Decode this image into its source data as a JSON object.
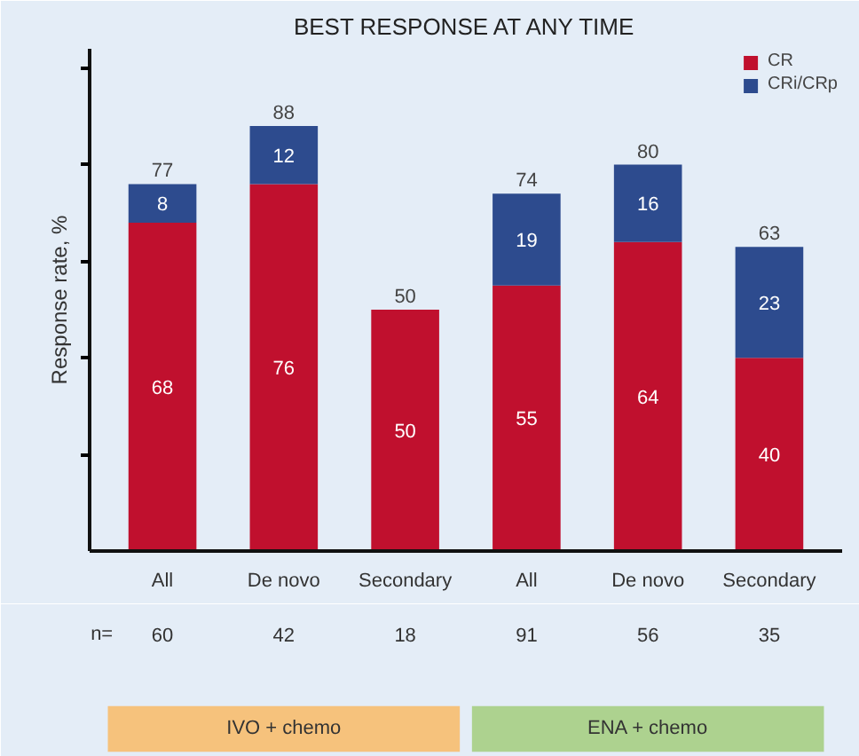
{
  "chart_data": {
    "type": "bar",
    "title": "BEST RESPONSE AT ANY TIME",
    "ylabel": "Response rate, %",
    "categories": [
      "All",
      "De novo",
      "Secondary",
      "All",
      "De novo",
      "Secondary"
    ],
    "stacked": true,
    "series": [
      {
        "name": "CR",
        "color": "#c0102e",
        "values": [
          68,
          76,
          50,
          55,
          64,
          40
        ]
      },
      {
        "name": "CRi/CRp",
        "color": "#2d4b8e",
        "values": [
          8,
          12,
          null,
          19,
          16,
          23
        ]
      }
    ],
    "data_labels": true,
    "totals": [
      "77",
      "88",
      "50",
      "74",
      "80",
      "63"
    ],
    "ylim": [
      0,
      104
    ],
    "yticks": [
      {
        "value": 20,
        "label": null
      },
      {
        "value": 40,
        "label": null
      },
      {
        "value": 60,
        "label": null
      },
      {
        "value": 80,
        "label": null
      },
      {
        "value": 100,
        "label": null
      }
    ],
    "tick_labels": "x",
    "grid": false,
    "legend": "top right",
    "annotations": [
      "n=",
      "60",
      "42",
      "18",
      "91",
      "56",
      "35",
      "IVO + chemo",
      "ENA + chemo"
    ]
  }
}
